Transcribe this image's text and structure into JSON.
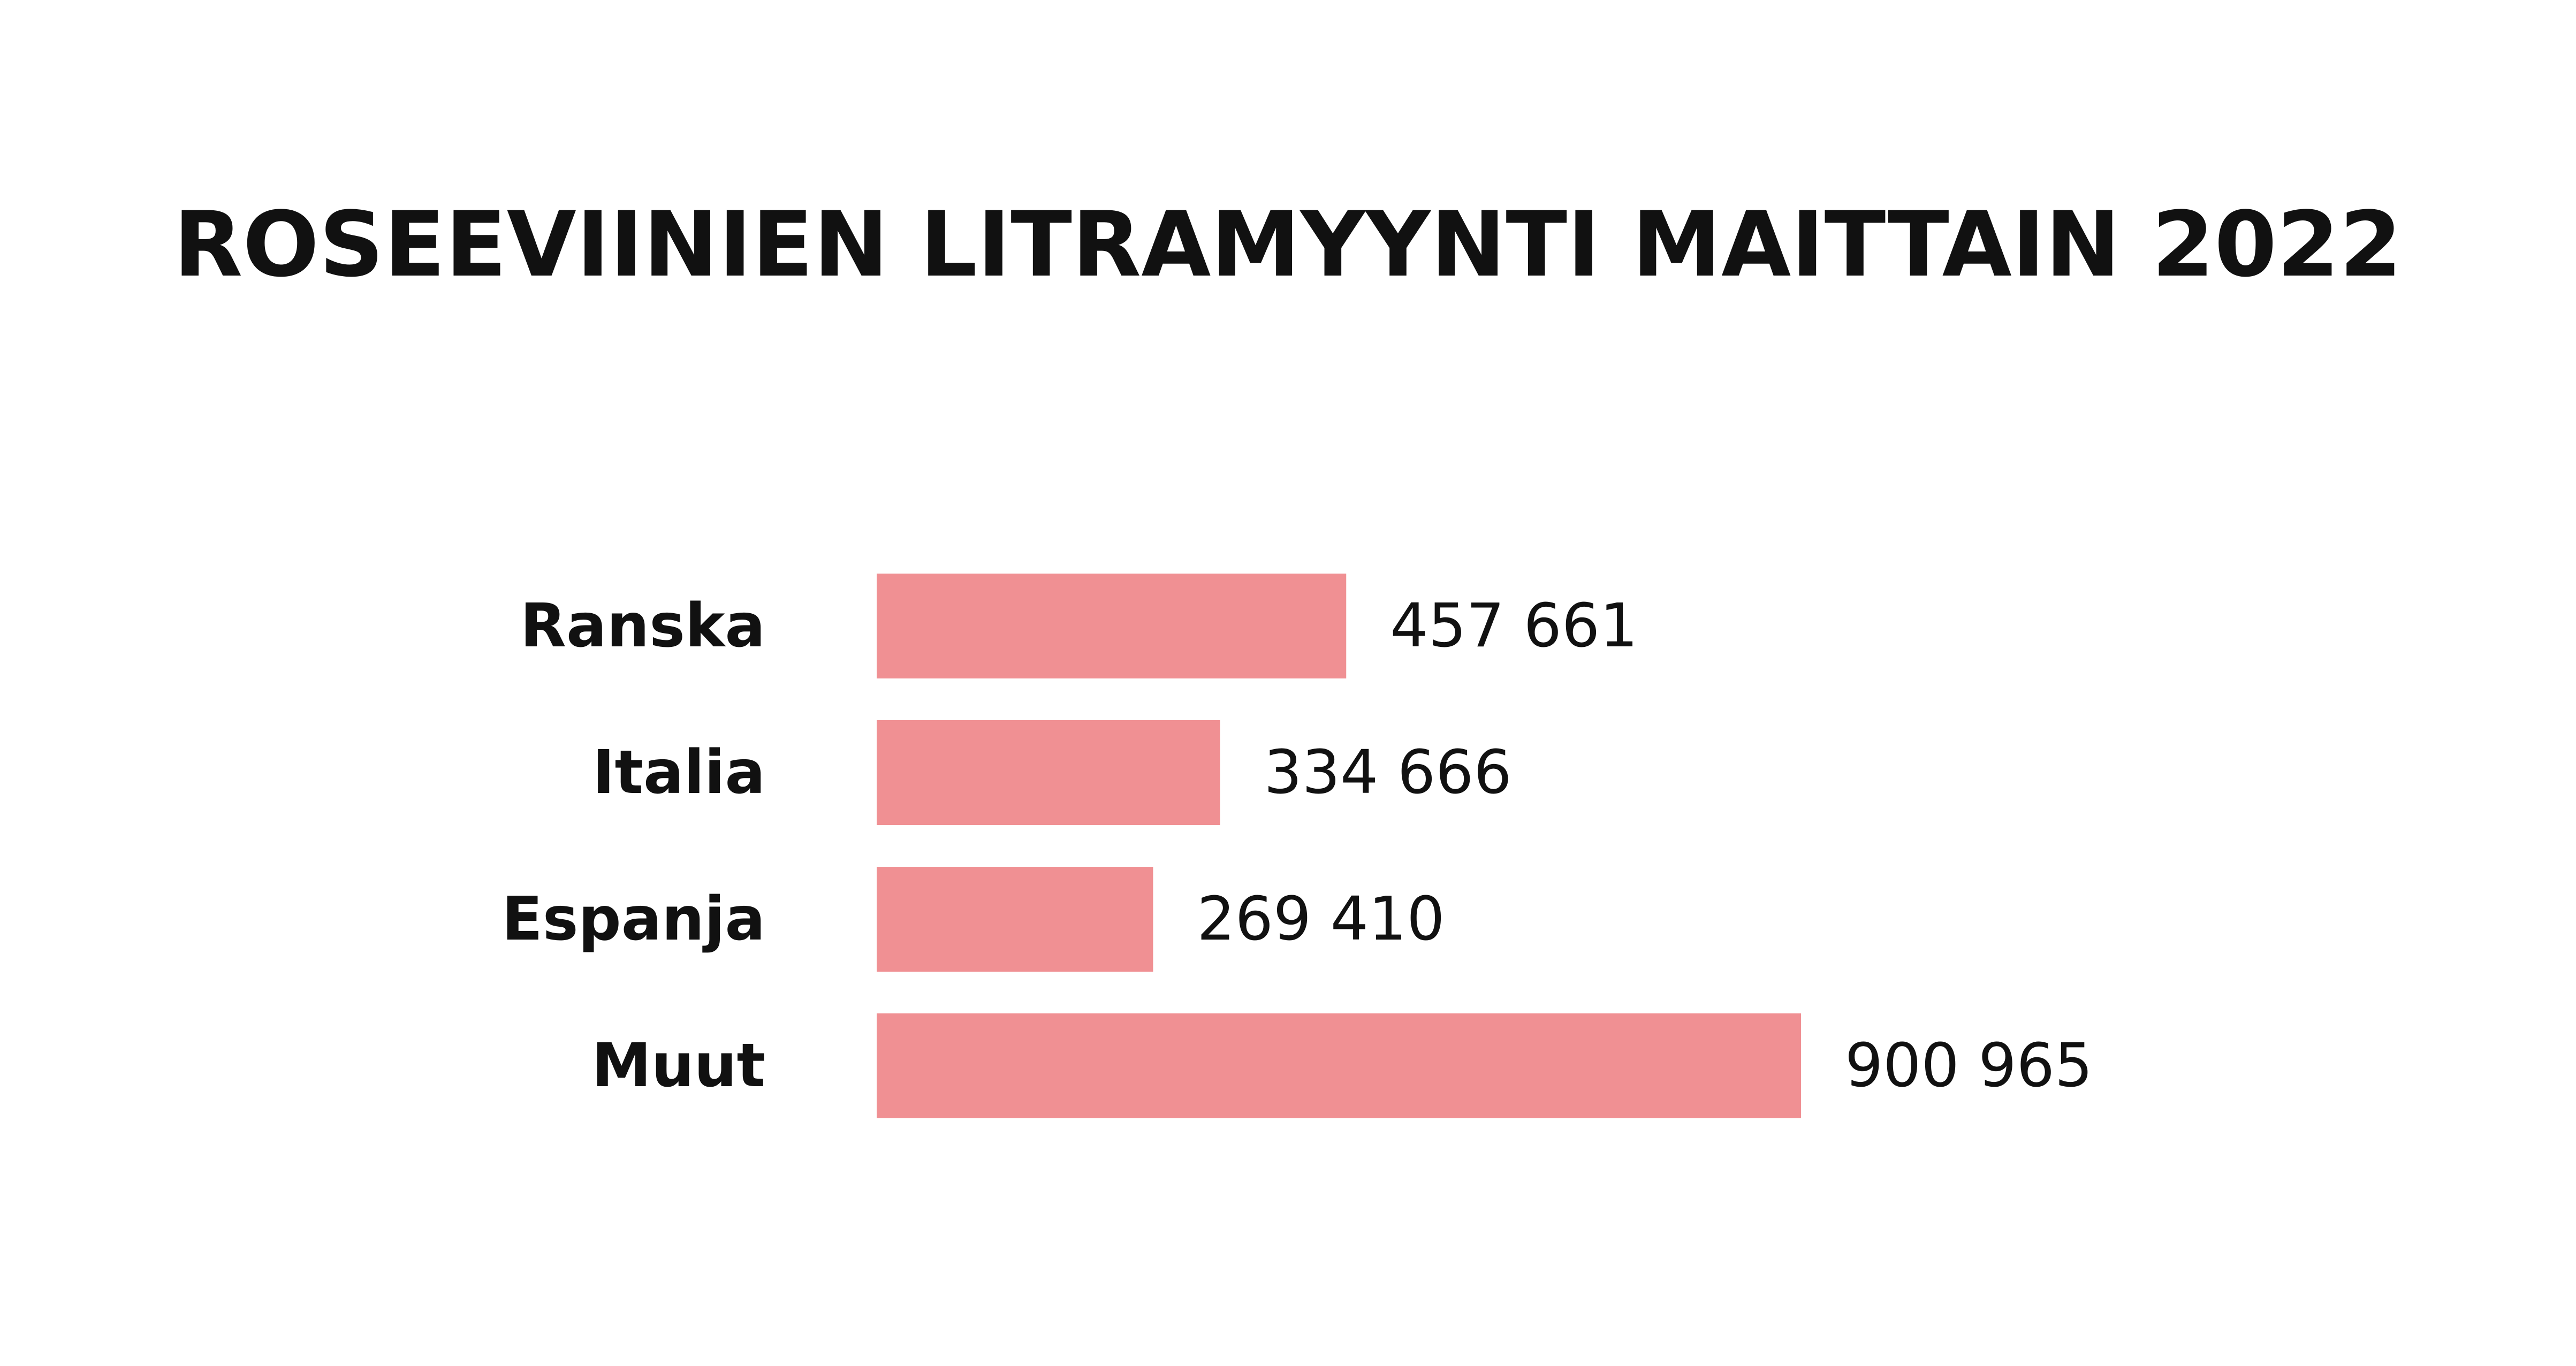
{
  "chart_data": {
    "type": "bar",
    "orientation": "horizontal",
    "title": "ROSEEVIINIEN LITRAMYYNTI MAITTAIN 2022",
    "categories": [
      "Ranska",
      "Italia",
      "Espanja",
      "Muut"
    ],
    "values": [
      457661,
      334666,
      269410,
      900965
    ],
    "value_labels": [
      "457 661",
      "334 666",
      "269 410",
      "900 965"
    ],
    "xlim": [
      0,
      900965
    ],
    "grid": false,
    "legend": "none",
    "bar_color": "#f09093"
  }
}
